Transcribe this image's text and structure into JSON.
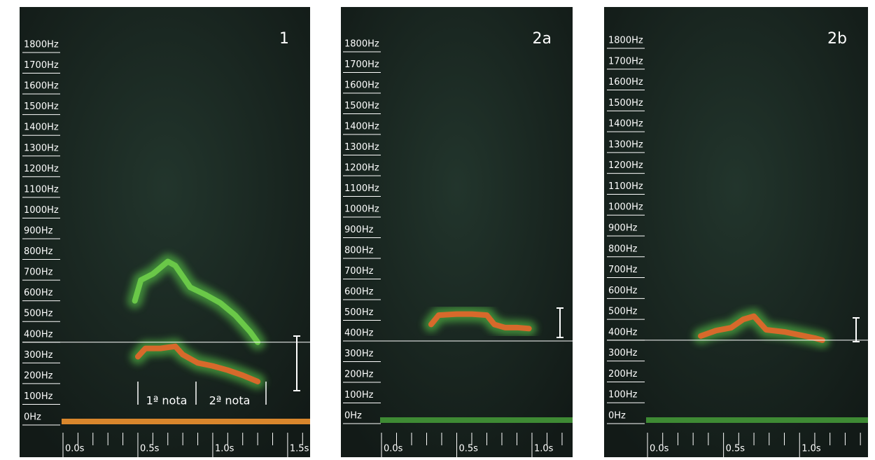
{
  "chart_data": [
    {
      "type": "line",
      "title": "1",
      "xlim": [
        0,
        1.65
      ],
      "ylim": [
        0,
        1800
      ],
      "xticks": [
        {
          "value": 0,
          "label": "0.0s"
        },
        {
          "value": 0.5,
          "label": "0.5s"
        },
        {
          "value": 1,
          "label": "1.0s"
        },
        {
          "value": 1.5,
          "label": "1.5s"
        }
      ],
      "xminorticks": [
        0.1,
        0.2,
        0.3,
        0.4,
        0.6,
        0.7,
        0.8,
        0.9,
        1.1,
        1.2,
        1.3,
        1.4,
        1.6
      ],
      "yticks": [
        {
          "value": 0,
          "label": "0Hz"
        },
        {
          "value": 100,
          "label": "100Hz"
        },
        {
          "value": 200,
          "label": "200Hz"
        },
        {
          "value": 300,
          "label": "300Hz"
        },
        {
          "value": 400,
          "label": "400Hz"
        },
        {
          "value": 500,
          "label": "500Hz"
        },
        {
          "value": 600,
          "label": "600Hz"
        },
        {
          "value": 700,
          "label": "700Hz"
        },
        {
          "value": 800,
          "label": "800Hz"
        },
        {
          "value": 900,
          "label": "900Hz"
        },
        {
          "value": 1000,
          "label": "1000Hz"
        },
        {
          "value": 1100,
          "label": "1100Hz"
        },
        {
          "value": 1200,
          "label": "1200Hz"
        },
        {
          "value": 1300,
          "label": "1300Hz"
        },
        {
          "value": 1400,
          "label": "1400Hz"
        },
        {
          "value": 1500,
          "label": "1500Hz"
        },
        {
          "value": 1600,
          "label": "1600Hz"
        },
        {
          "value": 1700,
          "label": "1700Hz"
        },
        {
          "value": 1800,
          "label": "1800Hz"
        }
      ],
      "hline": 400,
      "annotations": [
        "1ª nota",
        "2ª nota"
      ],
      "series": [
        {
          "color": "#e8662a",
          "x": [
            0.5,
            0.55,
            0.65,
            0.75,
            0.8,
            0.9,
            1.0,
            1.1,
            1.2,
            1.3
          ],
          "values": [
            330,
            370,
            370,
            380,
            340,
            300,
            285,
            265,
            240,
            210
          ]
        },
        {
          "color": "#6fcf4a",
          "x": [
            0.48,
            0.52,
            0.6,
            0.7,
            0.75,
            0.85,
            0.95,
            1.05,
            1.15,
            1.25,
            1.3
          ],
          "values": [
            600,
            700,
            730,
            790,
            770,
            665,
            630,
            590,
            530,
            450,
            400
          ]
        }
      ]
    },
    {
      "type": "line",
      "title": "2a",
      "xlim": [
        0,
        1.27
      ],
      "ylim": [
        0,
        1800
      ],
      "xticks": [
        {
          "value": 0,
          "label": "0.0s"
        },
        {
          "value": 0.5,
          "label": "0.5s"
        },
        {
          "value": 1,
          "label": "1.0s"
        }
      ],
      "xminorticks": [
        0.1,
        0.2,
        0.3,
        0.4,
        0.6,
        0.7,
        0.8,
        0.9,
        1.1,
        1.2
      ],
      "yticks": [
        {
          "value": 0,
          "label": "0Hz"
        },
        {
          "value": 100,
          "label": "100Hz"
        },
        {
          "value": 200,
          "label": "200Hz"
        },
        {
          "value": 300,
          "label": "300Hz"
        },
        {
          "value": 400,
          "label": "400Hz"
        },
        {
          "value": 500,
          "label": "500Hz"
        },
        {
          "value": 600,
          "label": "600Hz"
        },
        {
          "value": 700,
          "label": "700Hz"
        },
        {
          "value": 800,
          "label": "800Hz"
        },
        {
          "value": 900,
          "label": "900Hz"
        },
        {
          "value": 1000,
          "label": "1000Hz"
        },
        {
          "value": 1100,
          "label": "1100Hz"
        },
        {
          "value": 1200,
          "label": "1200Hz"
        },
        {
          "value": 1300,
          "label": "1300Hz"
        },
        {
          "value": 1400,
          "label": "1400Hz"
        },
        {
          "value": 1500,
          "label": "1500Hz"
        },
        {
          "value": 1600,
          "label": "1600Hz"
        },
        {
          "value": 1700,
          "label": "1700Hz"
        },
        {
          "value": 1800,
          "label": "1800Hz"
        }
      ],
      "hline": 400,
      "series": [
        {
          "color": "#e8662a",
          "x": [
            0.33,
            0.38,
            0.5,
            0.6,
            0.7,
            0.75,
            0.82,
            0.9,
            0.98
          ],
          "values": [
            480,
            525,
            530,
            530,
            525,
            480,
            465,
            465,
            460
          ]
        }
      ]
    },
    {
      "type": "line",
      "title": "2b",
      "xlim": [
        0,
        1.45
      ],
      "ylim": [
        0,
        1800
      ],
      "xticks": [
        {
          "value": 0,
          "label": "0.0s"
        },
        {
          "value": 0.5,
          "label": "0.5s"
        },
        {
          "value": 1,
          "label": "1.0s"
        }
      ],
      "xminorticks": [
        0.1,
        0.2,
        0.3,
        0.4,
        0.6,
        0.7,
        0.8,
        0.9,
        1.1,
        1.2,
        1.3,
        1.4
      ],
      "yticks": [
        {
          "value": 0,
          "label": "0Hz"
        },
        {
          "value": 100,
          "label": "100Hz"
        },
        {
          "value": 200,
          "label": "200Hz"
        },
        {
          "value": 300,
          "label": "300Hz"
        },
        {
          "value": 400,
          "label": "400Hz"
        },
        {
          "value": 500,
          "label": "500Hz"
        },
        {
          "value": 600,
          "label": "600Hz"
        },
        {
          "value": 700,
          "label": "700Hz"
        },
        {
          "value": 800,
          "label": "800Hz"
        },
        {
          "value": 900,
          "label": "900Hz"
        },
        {
          "value": 1000,
          "label": "1000Hz"
        },
        {
          "value": 1100,
          "label": "1100Hz"
        },
        {
          "value": 1200,
          "label": "1200Hz"
        },
        {
          "value": 1300,
          "label": "1300Hz"
        },
        {
          "value": 1400,
          "label": "1400Hz"
        },
        {
          "value": 1500,
          "label": "1500Hz"
        },
        {
          "value": 1600,
          "label": "1600Hz"
        },
        {
          "value": 1700,
          "label": "1700Hz"
        },
        {
          "value": 1800,
          "label": "1800Hz"
        }
      ],
      "hline": 400,
      "series": [
        {
          "color": "#e8662a",
          "x": [
            0.35,
            0.45,
            0.55,
            0.63,
            0.7,
            0.78,
            0.9,
            1.0,
            1.1,
            1.15
          ],
          "values": [
            420,
            446,
            460,
            500,
            515,
            450,
            440,
            425,
            410,
            400
          ]
        }
      ]
    }
  ]
}
